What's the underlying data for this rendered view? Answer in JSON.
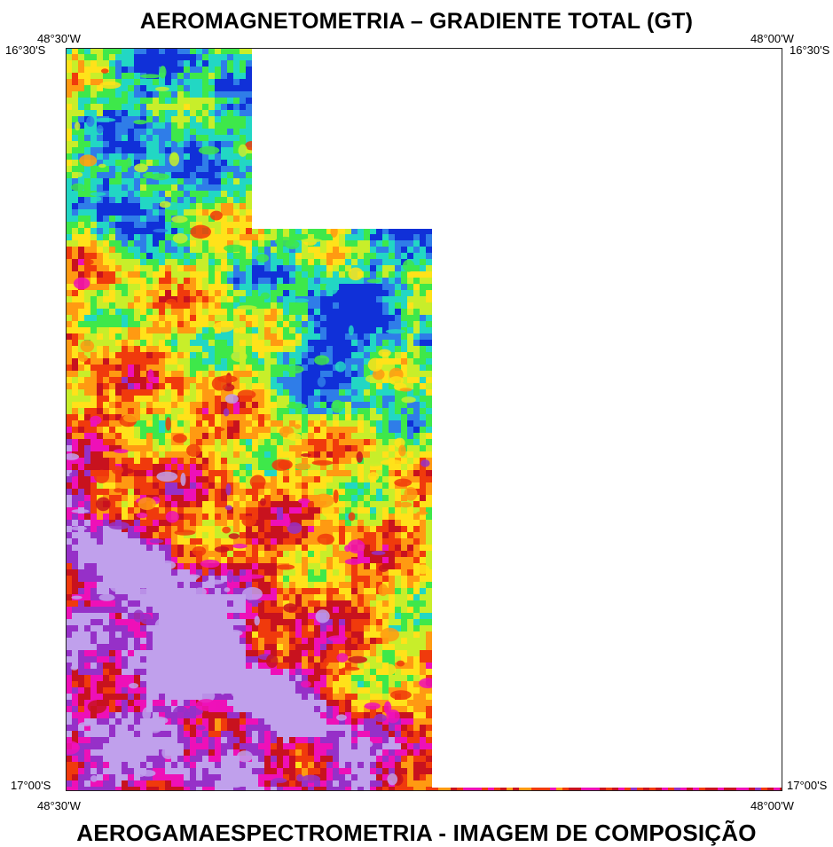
{
  "map": {
    "title": "AEROMAGNETOMETRIA – GRADIENTE TOTAL (GT)",
    "bottom_title": "AEROGAMAESPECTROMETRIA - IMAGEM DE COMPOSIÇÃO",
    "labels": {
      "top_left_lon": "48°30'W",
      "top_right_lon": "48°00'W",
      "top_left_lat": "16°30'S",
      "top_right_lat": "16°30'S",
      "bottom_left_lat": "17°00'S",
      "bottom_right_lat": "17°00'S",
      "bottom_left_lon": "48°30'W",
      "bottom_right_lon": "48°00'W"
    },
    "colormap": [
      "#1030d8",
      "#2f7de8",
      "#22d7c4",
      "#3ee84a",
      "#c8ee2a",
      "#ffe21a",
      "#ff9a12",
      "#f03a0c",
      "#c8121e",
      "#ee10b8",
      "#9630c8",
      "#c0a0ec"
    ]
  }
}
